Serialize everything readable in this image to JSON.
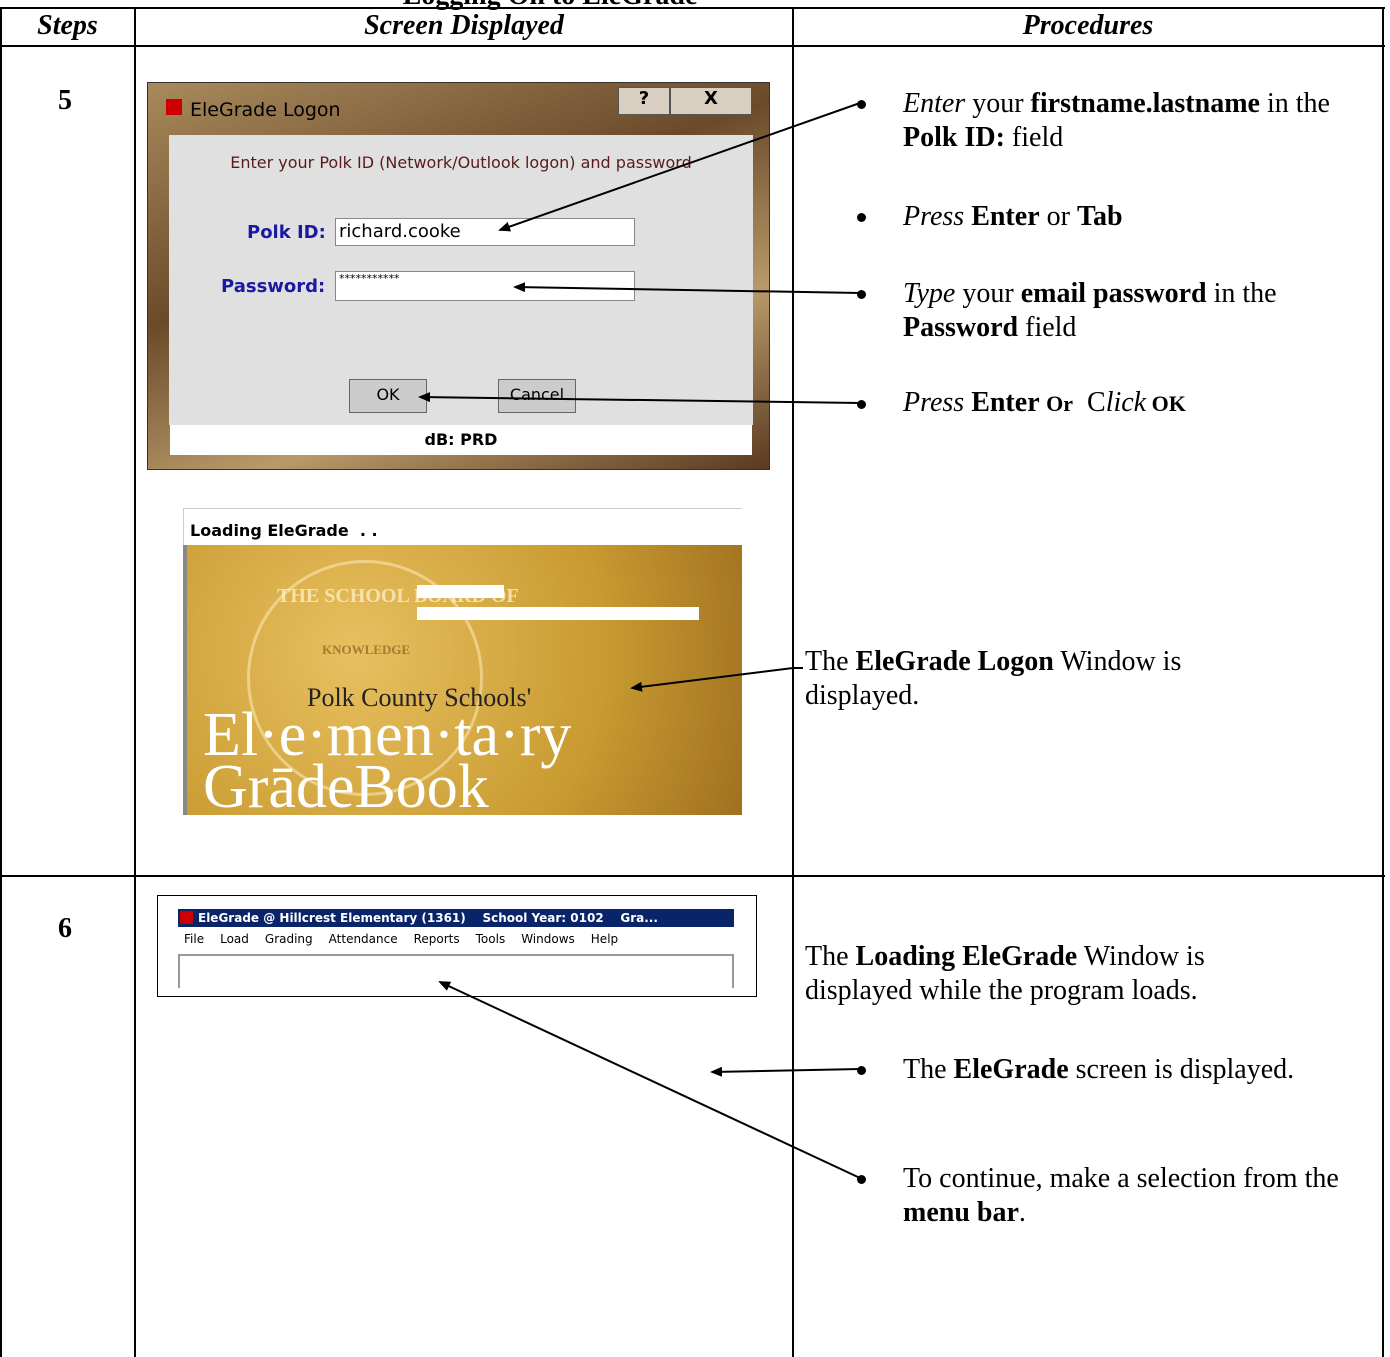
{
  "header": {
    "title": "Logging On to EleGrade"
  },
  "table": {
    "headers": [
      "Steps",
      "Screen Displayed",
      "Procedures"
    ],
    "rows": [
      {
        "step": "5",
        "screens": {
          "logon": {
            "title": "EleGrade Logon",
            "help": "?",
            "close": "X",
            "prompt": "Enter your Polk ID (Network/Outlook logon) and password",
            "id_label": "Polk ID:",
            "id_value": "richard.cooke",
            "password_label": "Password:",
            "password_value": "***********",
            "ok": "OK",
            "cancel": "Cancel",
            "status": "dB: PRD"
          },
          "loading": {
            "caption": "Loading EleGrade  . .",
            "seal_top": "THE SCHOOL BOARD OF",
            "seal_middle": "KNOWLEDGE",
            "org": "Polk County Schools'",
            "line1": "El·e·men·ta·ry",
            "line2": "GrādeBook"
          }
        },
        "procedures": [
          [
            "Enter",
            " your ",
            "firstname.lastname",
            " in the ",
            "Polk ID:",
            " field"
          ],
          [
            "Press",
            " Enter",
            " or ",
            "Tab"
          ],
          [
            "Type",
            " your ",
            "email password",
            " in the ",
            "Password",
            " field"
          ],
          [
            "Press",
            " Enter ",
            "Or",
            "  C",
            "lick",
            " OK"
          ]
        ],
        "note": [
          "The ",
          "EleGrade Logon",
          " Window is displayed."
        ]
      },
      {
        "step": "6",
        "screens": {
          "main": {
            "title": "EleGrade @ Hillcrest Elementary (1361)    School Year: 0102    Gra...",
            "menu": [
              "File",
              "Load",
              "Grading",
              "Attendance",
              "Reports",
              "Tools",
              "Windows",
              "Help"
            ]
          }
        },
        "note": [
          "The ",
          "Loading EleGrade",
          " Window is displayed while the program loads."
        ],
        "procedures": [
          [
            "The ",
            "EleGrade",
            " screen is displayed."
          ],
          [
            "To continue, make a selection from the ",
            "menu bar",
            "."
          ]
        ]
      }
    ]
  }
}
